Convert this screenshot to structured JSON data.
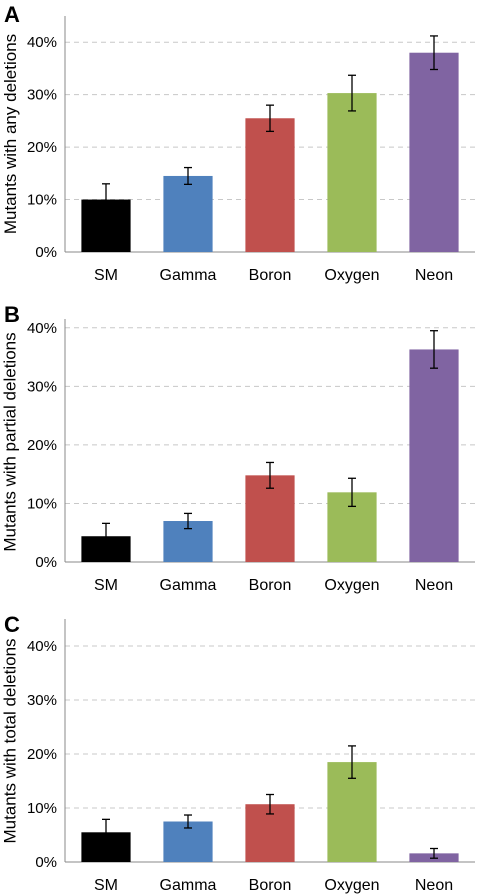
{
  "chart_data": [
    {
      "type": "bar",
      "panel_label": "A",
      "title": "",
      "xlabel": "",
      "ylabel": "Mutants with any deletions",
      "categories": [
        "SM",
        "Gamma",
        "Boron",
        "Oxygen",
        "Neon"
      ],
      "values": [
        10,
        14.5,
        25.5,
        30.3,
        38
      ],
      "errors": [
        3,
        1.6,
        2.5,
        3.4,
        3.2
      ],
      "colors": [
        "#000000",
        "#4F81BD",
        "#C0504D",
        "#9BBB59",
        "#8064A2"
      ],
      "ylim": [
        0,
        45
      ],
      "yticks": [
        0,
        10,
        20,
        30,
        40
      ],
      "ytick_labels": [
        "0%",
        "10%",
        "20%",
        "30%",
        "40%"
      ],
      "grid": true,
      "legend": "none"
    },
    {
      "type": "bar",
      "panel_label": "B",
      "title": "",
      "xlabel": "",
      "ylabel": "Mutants with partial deletions",
      "categories": [
        "SM",
        "Gamma",
        "Boron",
        "Oxygen",
        "Neon"
      ],
      "values": [
        4.4,
        7,
        14.8,
        11.9,
        36.3
      ],
      "errors": [
        2.2,
        1.3,
        2.2,
        2.4,
        3.2
      ],
      "colors": [
        "#000000",
        "#4F81BD",
        "#C0504D",
        "#9BBB59",
        "#8064A2"
      ],
      "ylim": [
        0,
        41.5
      ],
      "yticks": [
        0,
        10,
        20,
        30,
        40
      ],
      "ytick_labels": [
        "0%",
        "10%",
        "20%",
        "30%",
        "40%"
      ],
      "grid": true,
      "legend": "none"
    },
    {
      "type": "bar",
      "panel_label": "C",
      "title": "",
      "xlabel": "",
      "ylabel": "Mutants with total deletions",
      "categories": [
        "SM",
        "Gamma",
        "Boron",
        "Oxygen",
        "Neon"
      ],
      "values": [
        5.5,
        7.5,
        10.7,
        18.5,
        1.6
      ],
      "errors": [
        2.4,
        1.2,
        1.8,
        3,
        0.9
      ],
      "colors": [
        "#000000",
        "#4F81BD",
        "#C0504D",
        "#9BBB59",
        "#8064A2"
      ],
      "ylim": [
        0,
        45
      ],
      "yticks": [
        0,
        10,
        20,
        30,
        40
      ],
      "ytick_labels": [
        "0%",
        "10%",
        "20%",
        "30%",
        "40%"
      ],
      "grid": true,
      "legend": "none"
    }
  ]
}
